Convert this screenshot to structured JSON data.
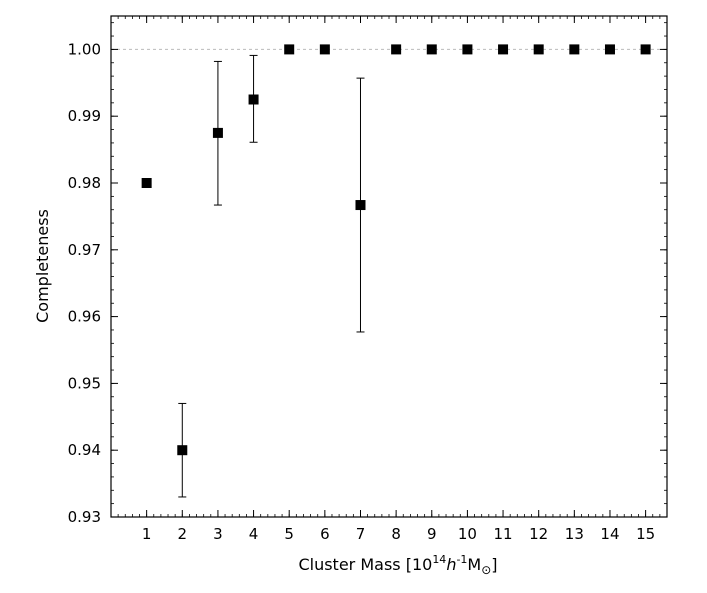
{
  "chart_data": {
    "type": "scatter",
    "title": "",
    "xlabel": {
      "main": "Cluster Mass ",
      "open": "[10",
      "sup1": "14",
      "h": "h",
      "sup2": "-1",
      "m": "M",
      "sub": "⊙",
      "close": "]"
    },
    "ylabel": "Completeness",
    "xlim": [
      0,
      15.6
    ],
    "ylim": [
      0.93,
      1.005
    ],
    "x_ticks": [
      1,
      2,
      3,
      4,
      5,
      6,
      7,
      8,
      9,
      10,
      11,
      12,
      13,
      14,
      15
    ],
    "x_tick_labels": [
      "1",
      "2",
      "3",
      "4",
      "5",
      "6",
      "7",
      "8",
      "9",
      "10",
      "11",
      "12",
      "13",
      "14",
      "15"
    ],
    "y_ticks": [
      0.93,
      0.94,
      0.95,
      0.96,
      0.97,
      0.98,
      0.99,
      1.0
    ],
    "y_tick_labels": [
      "0.93",
      "0.94",
      "0.95",
      "0.96",
      "0.97",
      "0.98",
      "0.99",
      "1.00"
    ],
    "reference_line": 1.0,
    "marker": "square",
    "color": "#000000",
    "points": [
      {
        "x": 1,
        "y": 0.98,
        "err_low": null,
        "err_high": null
      },
      {
        "x": 2,
        "y": 0.94,
        "err_low": 0.933,
        "err_high": 0.947
      },
      {
        "x": 3,
        "y": 0.9875,
        "err_low": 0.9767,
        "err_high": 0.9982
      },
      {
        "x": 4,
        "y": 0.9925,
        "err_low": 0.9861,
        "err_high": 0.9991
      },
      {
        "x": 5,
        "y": 1.0,
        "err_low": null,
        "err_high": null
      },
      {
        "x": 6,
        "y": 1.0,
        "err_low": null,
        "err_high": null
      },
      {
        "x": 7,
        "y": 0.9767,
        "err_low": 0.9577,
        "err_high": 0.9957
      },
      {
        "x": 8,
        "y": 1.0,
        "err_low": null,
        "err_high": null
      },
      {
        "x": 9,
        "y": 1.0,
        "err_low": null,
        "err_high": null
      },
      {
        "x": 10,
        "y": 1.0,
        "err_low": null,
        "err_high": null
      },
      {
        "x": 11,
        "y": 1.0,
        "err_low": null,
        "err_high": null
      },
      {
        "x": 12,
        "y": 1.0,
        "err_low": null,
        "err_high": null
      },
      {
        "x": 13,
        "y": 1.0,
        "err_low": null,
        "err_high": null
      },
      {
        "x": 14,
        "y": 1.0,
        "err_low": null,
        "err_high": null
      },
      {
        "x": 15,
        "y": 1.0,
        "err_low": null,
        "err_high": null
      }
    ]
  }
}
